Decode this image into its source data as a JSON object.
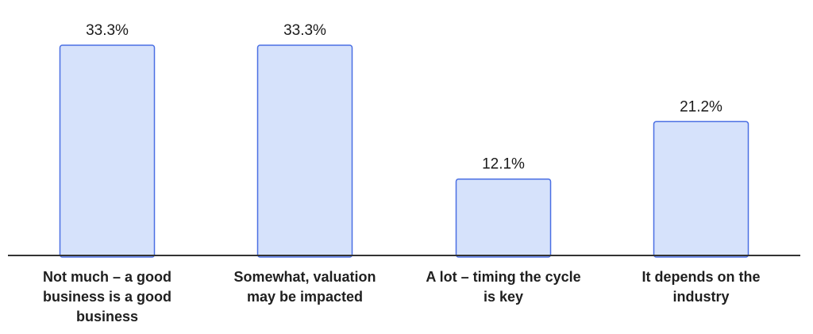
{
  "chart_data": {
    "type": "bar",
    "categories": [
      [
        "Not much – a good",
        "business is a good",
        "business"
      ],
      [
        "Somewhat, valuation",
        "may be impacted"
      ],
      [
        "A lot – timing the cycle",
        "is key"
      ],
      [
        "It depends on the",
        "industry"
      ]
    ],
    "values": [
      33.3,
      33.3,
      12.1,
      21.2
    ],
    "data_labels": [
      "33.3%",
      "33.3%",
      "12.1%",
      "21.2%"
    ],
    "ylim": [
      0,
      33.3
    ],
    "grid": false,
    "colors": {
      "bar_fill": "#d6e2fb",
      "bar_stroke": "#4a6fe3",
      "axis": "#333333"
    }
  }
}
